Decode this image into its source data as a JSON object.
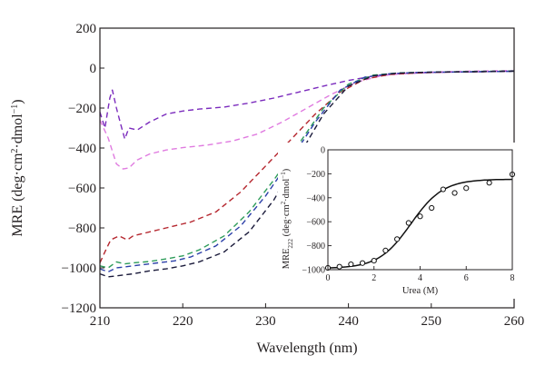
{
  "chart_data": [
    {
      "type": "line",
      "xlabel": "Wavelength (nm)",
      "ylabel": {
        "main": "MRE (deg·cm",
        "sup1": "2",
        "mid": "·dmol",
        "sup2": "−1",
        "end": ")"
      },
      "xlim": [
        210,
        260
      ],
      "ylim": [
        -1200,
        200
      ],
      "xticks": [
        210,
        220,
        230,
        240,
        250,
        260
      ],
      "yticks": [
        200,
        0,
        -200,
        -400,
        -600,
        -800,
        -1000,
        -1200
      ],
      "x_tick_labels": [
        "210",
        "220",
        "230",
        "240",
        "250",
        "260"
      ],
      "y_tick_labels": [
        "200",
        "0",
        "−200",
        "−400",
        "−600",
        "−800",
        "−1000",
        "−1200"
      ],
      "line_style": "dashed",
      "series": [
        {
          "color": "#7b2bbd",
          "points": [
            [
              210,
              -220
            ],
            [
              210.6,
              -300
            ],
            [
              211.2,
              -150
            ],
            [
              211.5,
              -110
            ],
            [
              212,
              -200
            ],
            [
              212.5,
              -280
            ],
            [
              213,
              -355
            ],
            [
              213.5,
              -300
            ],
            [
              214.5,
              -310
            ],
            [
              216,
              -270
            ],
            [
              218,
              -230
            ],
            [
              220,
              -215
            ],
            [
              222,
              -205
            ],
            [
              225,
              -195
            ],
            [
              228,
              -175
            ],
            [
              231,
              -150
            ],
            [
              234,
              -120
            ],
            [
              237,
              -90
            ],
            [
              240,
              -62
            ],
            [
              243,
              -40
            ],
            [
              246,
              -28
            ],
            [
              250,
              -22
            ],
            [
              255,
              -18
            ],
            [
              260,
              -15
            ]
          ]
        },
        {
          "color": "#e07be0",
          "points": [
            [
              210,
              -260
            ],
            [
              211,
              -350
            ],
            [
              212,
              -480
            ],
            [
              212.8,
              -505
            ],
            [
              213.5,
              -500
            ],
            [
              214.5,
              -460
            ],
            [
              216,
              -430
            ],
            [
              218,
              -410
            ],
            [
              220,
              -398
            ],
            [
              223,
              -385
            ],
            [
              226,
              -365
            ],
            [
              229,
              -330
            ],
            [
              232,
              -270
            ],
            [
              235,
              -200
            ],
            [
              238,
              -130
            ],
            [
              241,
              -70
            ],
            [
              244,
              -38
            ],
            [
              247,
              -25
            ],
            [
              250,
              -20
            ],
            [
              255,
              -15
            ],
            [
              260,
              -12
            ]
          ]
        },
        {
          "color": "#b5262e",
          "points": [
            [
              210,
              -975
            ],
            [
              210.6,
              -920
            ],
            [
              211.3,
              -860
            ],
            [
              212.3,
              -840
            ],
            [
              213.3,
              -860
            ],
            [
              214,
              -840
            ],
            [
              215.5,
              -825
            ],
            [
              218,
              -800
            ],
            [
              221,
              -770
            ],
            [
              224,
              -720
            ],
            [
              227,
              -620
            ],
            [
              230,
              -490
            ],
            [
              233,
              -360
            ],
            [
              236,
              -230
            ],
            [
              239,
              -120
            ],
            [
              242,
              -55
            ],
            [
              245,
              -32
            ],
            [
              248,
              -25
            ],
            [
              252,
              -20
            ],
            [
              256,
              -18
            ],
            [
              260,
              -15
            ]
          ]
        },
        {
          "color": "#2e9c5a",
          "points": [
            [
              210,
              -990
            ],
            [
              211,
              -1000
            ],
            [
              212,
              -970
            ],
            [
              213,
              -980
            ],
            [
              214,
              -975
            ],
            [
              216,
              -968
            ],
            [
              218,
              -955
            ],
            [
              220,
              -940
            ],
            [
              222,
              -910
            ],
            [
              225,
              -840
            ],
            [
              228,
              -720
            ],
            [
              231,
              -560
            ],
            [
              234,
              -380
            ],
            [
              237,
              -200
            ],
            [
              240,
              -80
            ],
            [
              243,
              -35
            ],
            [
              246,
              -24
            ],
            [
              250,
              -20
            ],
            [
              255,
              -17
            ],
            [
              260,
              -14
            ]
          ]
        },
        {
          "color": "#2b3fa8",
          "points": [
            [
              210,
              -1005
            ],
            [
              211,
              -1020
            ],
            [
              212,
              -1000
            ],
            [
              213,
              -995
            ],
            [
              215,
              -985
            ],
            [
              217,
              -975
            ],
            [
              219,
              -965
            ],
            [
              221,
              -945
            ],
            [
              224,
              -890
            ],
            [
              227,
              -790
            ],
            [
              230,
              -640
            ],
            [
              233,
              -460
            ],
            [
              236,
              -270
            ],
            [
              239,
              -110
            ],
            [
              242,
              -45
            ],
            [
              245,
              -28
            ],
            [
              248,
              -22
            ],
            [
              252,
              -20
            ],
            [
              256,
              -18
            ],
            [
              260,
              -16
            ]
          ]
        },
        {
          "color": "#1a1a3a",
          "points": [
            [
              210,
              -1030
            ],
            [
              211,
              -1045
            ],
            [
              212,
              -1040
            ],
            [
              214,
              -1030
            ],
            [
              216,
              -1015
            ],
            [
              218,
              -1005
            ],
            [
              220,
              -990
            ],
            [
              222,
              -970
            ],
            [
              225,
              -920
            ],
            [
              228,
              -820
            ],
            [
              231,
              -660
            ],
            [
              234,
              -440
            ],
            [
              237,
              -230
            ],
            [
              240,
              -90
            ],
            [
              243,
              -38
            ],
            [
              246,
              -25
            ],
            [
              250,
              -20
            ],
            [
              255,
              -18
            ],
            [
              260,
              -16
            ]
          ]
        }
      ]
    },
    {
      "type": "scatter",
      "xlabel": "Urea (M)",
      "ylabel": {
        "main": "MRE",
        "sub": "222",
        "mid": " (deg·cm",
        "sup1": "2",
        "end": "·dmol",
        "sup2": "−1",
        "close": ")"
      },
      "xlim": [
        0,
        8
      ],
      "ylim": [
        -1000,
        0
      ],
      "xticks": [
        0,
        2,
        4,
        6,
        8
      ],
      "yticks": [
        0,
        -200,
        -400,
        -600,
        -800,
        -1000
      ],
      "x_tick_labels": [
        "0",
        "2",
        "4",
        "6",
        "8"
      ],
      "y_tick_labels": [
        "0",
        "−200",
        "−400",
        "−600",
        "−800",
        "−1000"
      ],
      "points": [
        [
          0,
          -985
        ],
        [
          0.5,
          -975
        ],
        [
          1,
          -955
        ],
        [
          1.5,
          -945
        ],
        [
          2,
          -925
        ],
        [
          2.5,
          -840
        ],
        [
          3,
          -745
        ],
        [
          3.5,
          -610
        ],
        [
          4,
          -555
        ],
        [
          4.5,
          -485
        ],
        [
          5,
          -330
        ],
        [
          5.5,
          -360
        ],
        [
          6,
          -320
        ],
        [
          7,
          -275
        ],
        [
          8,
          -205
        ]
      ],
      "fit": {
        "bottom": -990,
        "top": -245,
        "midpoint": 3.6,
        "slope": 0.7
      }
    }
  ]
}
